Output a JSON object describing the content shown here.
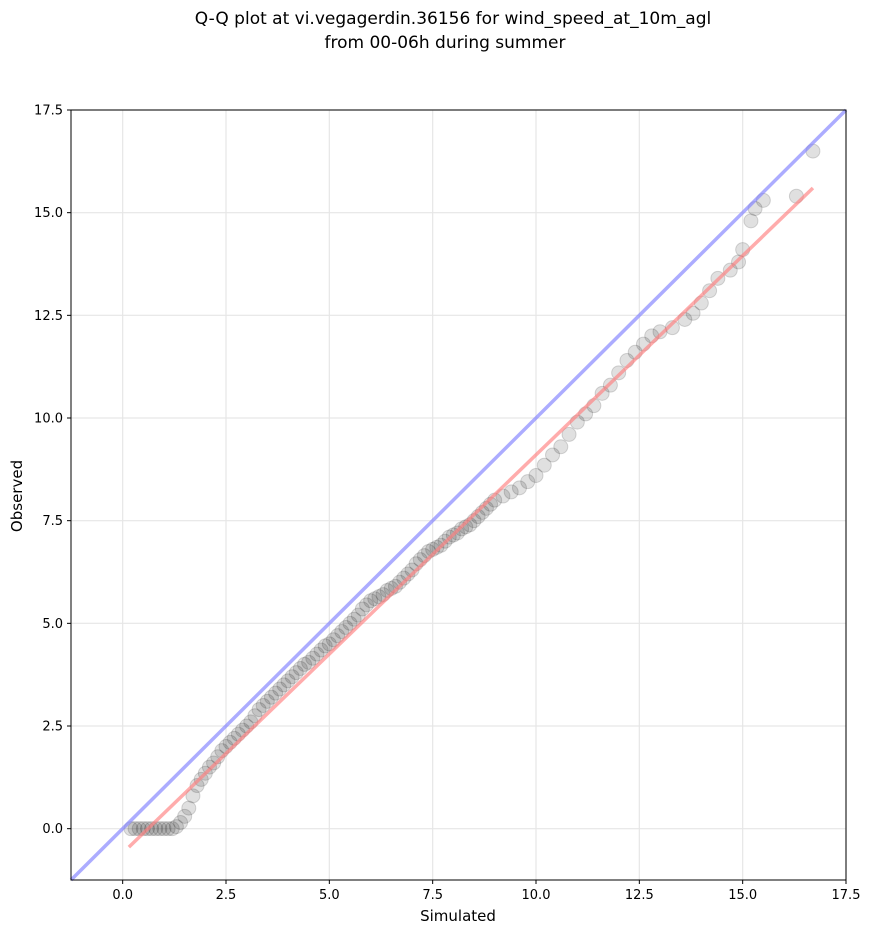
{
  "chart_data": {
    "type": "scatter",
    "title_line1": "Q-Q plot at vi.vegagerdin.36156 for wind_speed_at_10m_agl",
    "title_line2": "from 00-06h during summer",
    "xlabel": "Simulated",
    "ylabel": "Observed",
    "xlim": [
      -1.25,
      17.5
    ],
    "ylim": [
      -1.25,
      17.5
    ],
    "xticks": [
      "0.0",
      "2.5",
      "5.0",
      "7.5",
      "10.0",
      "12.5",
      "15.0",
      "17.5"
    ],
    "yticks": [
      "0.0",
      "2.5",
      "5.0",
      "7.5",
      "10.0",
      "12.5",
      "15.0",
      "17.5"
    ],
    "xtick_values": [
      0,
      2.5,
      5,
      7.5,
      10,
      12.5,
      15,
      17.5
    ],
    "ytick_values": [
      0,
      2.5,
      5,
      7.5,
      10,
      12.5,
      15,
      17.5
    ],
    "grid": true,
    "identity_line": {
      "color": "#7f7fff"
    },
    "fit_line": {
      "x": [
        0.15,
        16.7
      ],
      "y": [
        -0.45,
        15.6
      ],
      "color": "#ff7f7f"
    },
    "point_color": "#000000",
    "points": [
      [
        0.2,
        0
      ],
      [
        0.3,
        0
      ],
      [
        0.4,
        0
      ],
      [
        0.5,
        0
      ],
      [
        0.6,
        0
      ],
      [
        0.7,
        0
      ],
      [
        0.8,
        0
      ],
      [
        0.9,
        0
      ],
      [
        1.0,
        0
      ],
      [
        1.1,
        0
      ],
      [
        1.2,
        0
      ],
      [
        1.3,
        0.05
      ],
      [
        1.4,
        0.15
      ],
      [
        1.5,
        0.3
      ],
      [
        1.6,
        0.5
      ],
      [
        1.7,
        0.8
      ],
      [
        1.8,
        1.05
      ],
      [
        1.9,
        1.2
      ],
      [
        2.0,
        1.35
      ],
      [
        2.1,
        1.5
      ],
      [
        2.2,
        1.6
      ],
      [
        2.3,
        1.75
      ],
      [
        2.4,
        1.9
      ],
      [
        2.5,
        2.0
      ],
      [
        2.6,
        2.1
      ],
      [
        2.7,
        2.2
      ],
      [
        2.8,
        2.3
      ],
      [
        2.9,
        2.4
      ],
      [
        3.0,
        2.5
      ],
      [
        3.1,
        2.6
      ],
      [
        3.2,
        2.75
      ],
      [
        3.3,
        2.9
      ],
      [
        3.4,
        3.0
      ],
      [
        3.5,
        3.1
      ],
      [
        3.6,
        3.2
      ],
      [
        3.7,
        3.3
      ],
      [
        3.8,
        3.4
      ],
      [
        3.9,
        3.5
      ],
      [
        4.0,
        3.6
      ],
      [
        4.1,
        3.7
      ],
      [
        4.2,
        3.8
      ],
      [
        4.3,
        3.9
      ],
      [
        4.4,
        4.0
      ],
      [
        4.5,
        4.05
      ],
      [
        4.6,
        4.15
      ],
      [
        4.7,
        4.25
      ],
      [
        4.8,
        4.35
      ],
      [
        4.9,
        4.45
      ],
      [
        5.0,
        4.5
      ],
      [
        5.1,
        4.6
      ],
      [
        5.2,
        4.7
      ],
      [
        5.3,
        4.8
      ],
      [
        5.4,
        4.9
      ],
      [
        5.5,
        5.0
      ],
      [
        5.6,
        5.1
      ],
      [
        5.7,
        5.2
      ],
      [
        5.8,
        5.35
      ],
      [
        5.9,
        5.45
      ],
      [
        6.0,
        5.55
      ],
      [
        6.1,
        5.6
      ],
      [
        6.2,
        5.65
      ],
      [
        6.3,
        5.7
      ],
      [
        6.4,
        5.8
      ],
      [
        6.5,
        5.85
      ],
      [
        6.6,
        5.9
      ],
      [
        6.7,
        6.0
      ],
      [
        6.8,
        6.1
      ],
      [
        6.9,
        6.2
      ],
      [
        7.0,
        6.3
      ],
      [
        7.1,
        6.45
      ],
      [
        7.2,
        6.55
      ],
      [
        7.3,
        6.65
      ],
      [
        7.4,
        6.75
      ],
      [
        7.5,
        6.8
      ],
      [
        7.6,
        6.85
      ],
      [
        7.7,
        6.9
      ],
      [
        7.8,
        7.0
      ],
      [
        7.9,
        7.1
      ],
      [
        8.0,
        7.15
      ],
      [
        8.1,
        7.2
      ],
      [
        8.2,
        7.3
      ],
      [
        8.3,
        7.35
      ],
      [
        8.4,
        7.4
      ],
      [
        8.5,
        7.5
      ],
      [
        8.6,
        7.6
      ],
      [
        8.7,
        7.7
      ],
      [
        8.8,
        7.8
      ],
      [
        8.9,
        7.9
      ],
      [
        9.0,
        8.0
      ],
      [
        9.2,
        8.1
      ],
      [
        9.4,
        8.2
      ],
      [
        9.6,
        8.3
      ],
      [
        9.8,
        8.45
      ],
      [
        10.0,
        8.6
      ],
      [
        10.2,
        8.85
      ],
      [
        10.4,
        9.1
      ],
      [
        10.6,
        9.3
      ],
      [
        10.8,
        9.6
      ],
      [
        11.0,
        9.9
      ],
      [
        11.2,
        10.1
      ],
      [
        11.4,
        10.3
      ],
      [
        11.6,
        10.6
      ],
      [
        11.8,
        10.8
      ],
      [
        12.0,
        11.1
      ],
      [
        12.2,
        11.4
      ],
      [
        12.4,
        11.6
      ],
      [
        12.6,
        11.8
      ],
      [
        12.8,
        12.0
      ],
      [
        13.0,
        12.1
      ],
      [
        13.3,
        12.2
      ],
      [
        13.6,
        12.4
      ],
      [
        13.8,
        12.55
      ],
      [
        14.0,
        12.8
      ],
      [
        14.2,
        13.1
      ],
      [
        14.4,
        13.4
      ],
      [
        14.7,
        13.6
      ],
      [
        14.9,
        13.8
      ],
      [
        15.0,
        14.1
      ],
      [
        15.2,
        14.8
      ],
      [
        15.3,
        15.1
      ],
      [
        15.5,
        15.3
      ],
      [
        16.3,
        15.4
      ],
      [
        16.7,
        16.5
      ]
    ]
  }
}
